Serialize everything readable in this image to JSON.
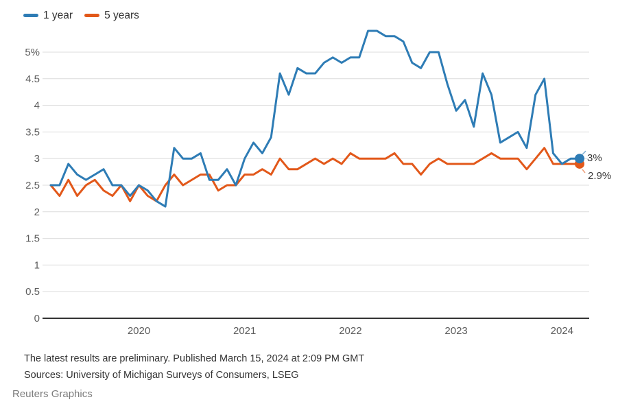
{
  "legend": [
    {
      "label": "1 year",
      "color": "#2e7cb5"
    },
    {
      "label": "5 years",
      "color": "#e2581a"
    }
  ],
  "chart_data": {
    "type": "line",
    "frequency": "monthly",
    "x_start": "2019-03",
    "x_end": "2024-03",
    "grid": true,
    "legend_position": "top-left",
    "ylim": [
      0,
      5.5
    ],
    "y_ticks": [
      "5%",
      "4.5",
      "4",
      "3.5",
      "3",
      "2.5",
      "2",
      "1.5",
      "1",
      "0.5",
      "0"
    ],
    "y_tick_values": [
      5,
      4.5,
      4,
      3.5,
      3,
      2.5,
      2,
      1.5,
      1,
      0.5,
      0
    ],
    "year_ticks": [
      "2020",
      "2021",
      "2022",
      "2023",
      "2024"
    ],
    "grid_color": "#dcdcdc",
    "axis_color": "#333333",
    "series": [
      {
        "name": "1 year",
        "color": "#2e7cb5",
        "end_label": "3%",
        "end_value": 3.0,
        "values": [
          2.5,
          2.5,
          2.9,
          2.7,
          2.6,
          2.7,
          2.8,
          2.5,
          2.5,
          2.3,
          2.5,
          2.4,
          2.2,
          2.1,
          3.2,
          3.0,
          3.0,
          3.1,
          2.6,
          2.6,
          2.8,
          2.5,
          3.0,
          3.3,
          3.1,
          3.4,
          4.6,
          4.2,
          4.7,
          4.6,
          4.6,
          4.8,
          4.9,
          4.8,
          4.9,
          4.9,
          5.4,
          5.4,
          5.3,
          5.3,
          5.2,
          4.8,
          4.7,
          5.0,
          5.0,
          4.4,
          3.9,
          4.1,
          3.6,
          4.6,
          4.2,
          3.3,
          3.4,
          3.5,
          3.2,
          4.2,
          4.5,
          3.1,
          2.9,
          3.0,
          3.0
        ]
      },
      {
        "name": "5 years",
        "color": "#e2581a",
        "end_label": "2.9%",
        "end_value": 2.9,
        "values": [
          2.5,
          2.3,
          2.6,
          2.3,
          2.5,
          2.6,
          2.4,
          2.3,
          2.5,
          2.2,
          2.5,
          2.3,
          2.2,
          2.5,
          2.7,
          2.5,
          2.6,
          2.7,
          2.7,
          2.4,
          2.5,
          2.5,
          2.7,
          2.7,
          2.8,
          2.7,
          3.0,
          2.8,
          2.8,
          2.9,
          3.0,
          2.9,
          3.0,
          2.9,
          3.1,
          3.0,
          3.0,
          3.0,
          3.0,
          3.1,
          2.9,
          2.9,
          2.7,
          2.9,
          3.0,
          2.9,
          2.9,
          2.9,
          2.9,
          3.0,
          3.1,
          3.0,
          3.0,
          3.0,
          2.8,
          3.0,
          3.2,
          2.9,
          2.9,
          2.9,
          2.9
        ]
      }
    ]
  },
  "notes": {
    "line1": "The latest results are preliminary. Published March 15, 2024 at 2:09 PM GMT",
    "line2": "Sources: University of Michigan Surveys of Consumers, LSEG"
  },
  "credit": "Reuters Graphics"
}
